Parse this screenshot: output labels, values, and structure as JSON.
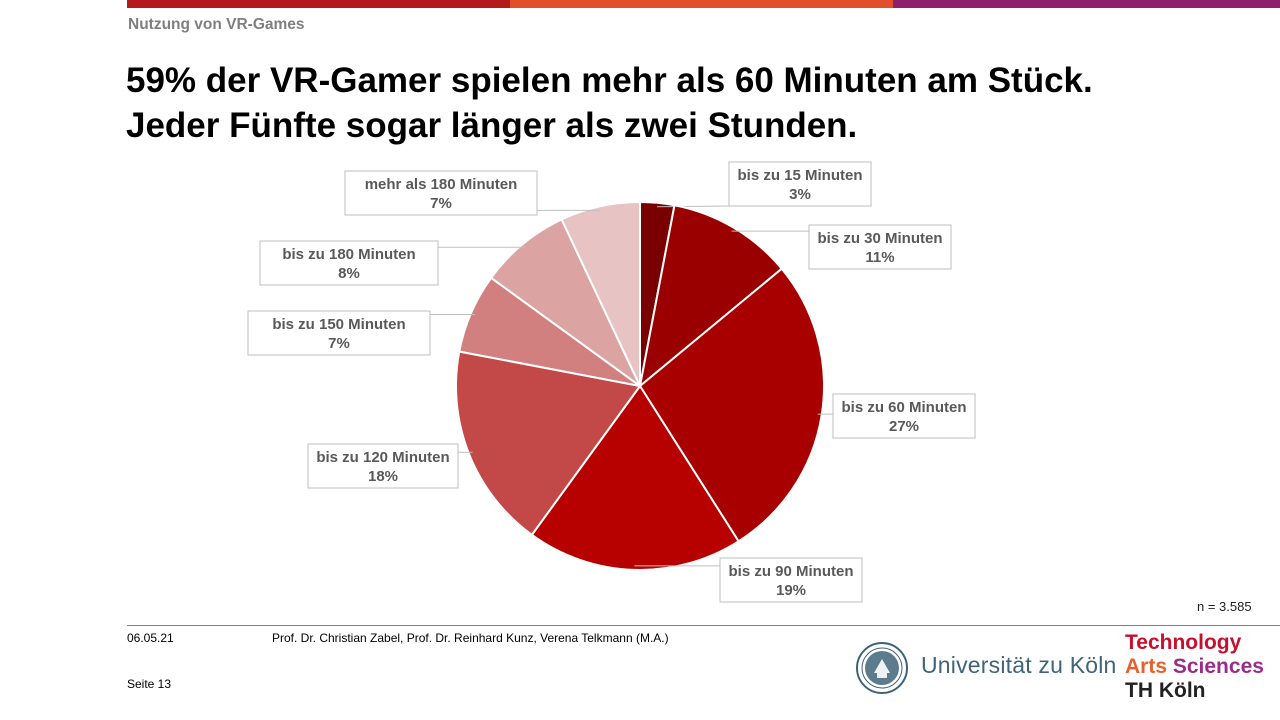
{
  "colors": {
    "bar1": "#b31b1b",
    "bar2": "#e1502b",
    "bar3": "#8e1f6c",
    "uni_blue": "#3f6479",
    "th_red": "#c8102e",
    "th_orange": "#e8612c",
    "th_purple": "#9b2d8a"
  },
  "header": {
    "section": "Nutzung von VR-Games",
    "title_line1": "59% der VR-Gamer spielen mehr als 60 Minuten am Stück.",
    "title_line2": "Jeder Fünfte sogar länger als zwei Stunden."
  },
  "chart_data": {
    "type": "pie",
    "start_angle_deg": 0,
    "direction": "clockwise",
    "slices": [
      {
        "label": "bis zu 15 Minuten",
        "value": 3,
        "display": "3%",
        "color": "#7a0000"
      },
      {
        "label": "bis zu 30 Minuten",
        "value": 11,
        "display": "11%",
        "color": "#9b0000"
      },
      {
        "label": "bis zu 60 Minuten",
        "value": 27,
        "display": "27%",
        "color": "#a80000"
      },
      {
        "label": "bis zu 90 Minuten",
        "value": 19,
        "display": "19%",
        "color": "#b70000"
      },
      {
        "label": "bis zu 120 Minuten",
        "value": 18,
        "display": "18%",
        "color": "#c34848"
      },
      {
        "label": "bis zu 150 Minuten",
        "value": 7,
        "display": "7%",
        "color": "#d27f7f"
      },
      {
        "label": "bis zu 180 Minuten",
        "value": 8,
        "display": "8%",
        "color": "#dca3a3"
      },
      {
        "label": "mehr als 180 Minuten",
        "value": 7,
        "display": "7%",
        "color": "#e7c3c3"
      }
    ]
  },
  "note": "n = 3.585",
  "footer": {
    "date": "06.05.21",
    "authors": "Prof. Dr. Christian Zabel, Prof. Dr. Reinhard Kunz, Verena Telkmann (M.A.)",
    "page": "Seite 13"
  },
  "logos": {
    "university": "Universität zu Köln",
    "th_line1": "Technology",
    "th_line2a": "Arts",
    "th_line2b": "Sciences",
    "th_line3": "TH Köln"
  }
}
